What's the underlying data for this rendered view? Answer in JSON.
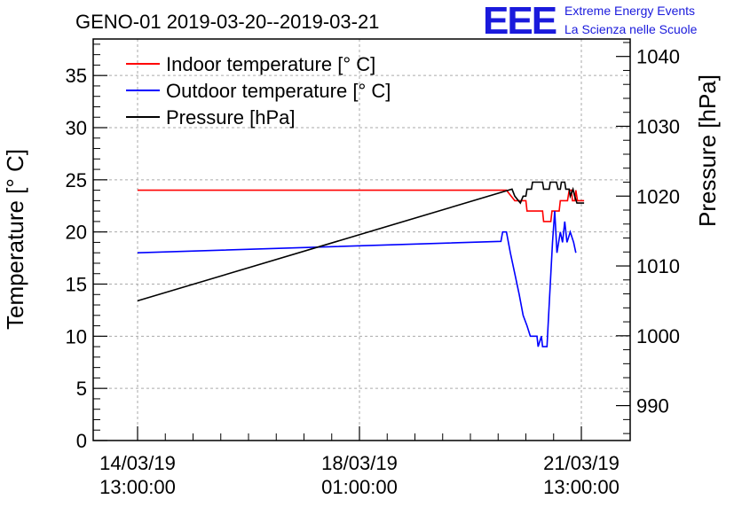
{
  "chart_data": {
    "type": "line",
    "title": "GENO-01 2019-03-20--2019-03-21",
    "ylabel": "Temperature [° C]",
    "y2label": "Pressure [hPa]",
    "ylim": [
      0,
      38.5
    ],
    "y2lim": [
      985,
      1042.5
    ],
    "yticks": [
      "0",
      "5",
      "10",
      "15",
      "20",
      "25",
      "30",
      "35"
    ],
    "y2ticks": [
      "990",
      "1000",
      "1010",
      "1020",
      "1030",
      "1040"
    ],
    "xticks": [
      {
        "line1": "14/03/19",
        "line2": "13:00:00"
      },
      {
        "line1": "18/03/19",
        "line2": "01:00:00"
      },
      {
        "line1": "21/03/19",
        "line2": "13:00:00"
      }
    ],
    "grid": true,
    "legend_position": "top-left",
    "series": [
      {
        "name": "Indoor temperature [° C]",
        "color": "#ff0000",
        "axis": "left",
        "points": [
          [
            0,
            24
          ],
          [
            6.65,
            24
          ],
          [
            6.8,
            23
          ],
          [
            7.0,
            23
          ],
          [
            7.02,
            22
          ],
          [
            7.3,
            22
          ],
          [
            7.32,
            21
          ],
          [
            7.45,
            21
          ],
          [
            7.47,
            22
          ],
          [
            7.6,
            22
          ],
          [
            7.62,
            23
          ],
          [
            7.75,
            23
          ],
          [
            7.78,
            24
          ],
          [
            7.82,
            24
          ],
          [
            7.84,
            23
          ],
          [
            7.88,
            23
          ],
          [
            7.9,
            24
          ],
          [
            7.93,
            23
          ],
          [
            8.05,
            23
          ]
        ]
      },
      {
        "name": "Outdoor temperature [° C]",
        "color": "#0000ff",
        "axis": "left",
        "points": [
          [
            0,
            18
          ],
          [
            6.55,
            19.1
          ],
          [
            6.58,
            20
          ],
          [
            6.65,
            20
          ],
          [
            6.72,
            18
          ],
          [
            6.8,
            16
          ],
          [
            6.88,
            14
          ],
          [
            6.95,
            12
          ],
          [
            7.02,
            11
          ],
          [
            7.08,
            10
          ],
          [
            7.2,
            10
          ],
          [
            7.22,
            9
          ],
          [
            7.28,
            10
          ],
          [
            7.3,
            9
          ],
          [
            7.38,
            9
          ],
          [
            7.4,
            11
          ],
          [
            7.48,
            19
          ],
          [
            7.52,
            22
          ],
          [
            7.56,
            18
          ],
          [
            7.62,
            20
          ],
          [
            7.66,
            19
          ],
          [
            7.7,
            21
          ],
          [
            7.74,
            19
          ],
          [
            7.8,
            20
          ],
          [
            7.86,
            19
          ],
          [
            7.9,
            18
          ]
        ]
      },
      {
        "name": "Pressure [hPa]",
        "color": "#000000",
        "axis": "right",
        "points": [
          [
            0,
            1005
          ],
          [
            6.75,
            1021
          ],
          [
            6.8,
            1020
          ],
          [
            6.9,
            1019
          ],
          [
            6.95,
            1020
          ],
          [
            7.0,
            1020
          ],
          [
            7.02,
            1021
          ],
          [
            7.1,
            1021
          ],
          [
            7.12,
            1022
          ],
          [
            7.3,
            1022
          ],
          [
            7.32,
            1021
          ],
          [
            7.42,
            1021
          ],
          [
            7.44,
            1022
          ],
          [
            7.55,
            1022
          ],
          [
            7.58,
            1021
          ],
          [
            7.62,
            1021
          ],
          [
            7.64,
            1022
          ],
          [
            7.7,
            1022
          ],
          [
            7.72,
            1021
          ],
          [
            7.78,
            1021
          ],
          [
            7.8,
            1020
          ],
          [
            7.85,
            1021
          ],
          [
            7.88,
            1020
          ],
          [
            7.92,
            1019
          ],
          [
            8.05,
            1019
          ]
        ]
      }
    ]
  },
  "logo": {
    "mark": "EEE",
    "line1": "Extreme Energy Events",
    "line2": "La Scienza nelle Scuole"
  }
}
